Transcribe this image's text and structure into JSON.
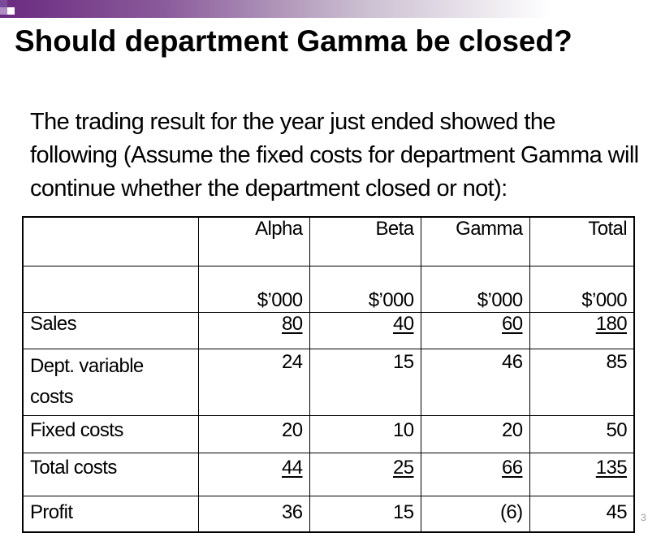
{
  "slide": {
    "title": "Should department Gamma be closed?",
    "intro": "The trading result for the year just ended showed the following (Assume the fixed costs for department Gamma will continue whether the department closed or not):",
    "page_number": "3"
  },
  "table": {
    "header": [
      "",
      "Alpha",
      "Beta",
      "Gamma",
      "Total"
    ],
    "units": [
      "",
      "$’000",
      "$’000",
      "$’000",
      "$’000"
    ],
    "rows": [
      {
        "label": "Sales",
        "values": [
          "80",
          "40",
          "60",
          "180"
        ],
        "underline": true
      },
      {
        "label": "Dept. variable costs",
        "values": [
          "24",
          "15",
          "46",
          "85"
        ],
        "underline": false
      },
      {
        "label": "Fixed costs",
        "values": [
          "20",
          "10",
          "20",
          "50"
        ],
        "underline": false
      },
      {
        "label": "Total costs",
        "values": [
          "44",
          "25",
          "66",
          "135"
        ],
        "underline": true
      },
      {
        "label": "Profit",
        "values": [
          "36",
          "15",
          "(6)",
          "45"
        ],
        "underline": false
      }
    ]
  }
}
